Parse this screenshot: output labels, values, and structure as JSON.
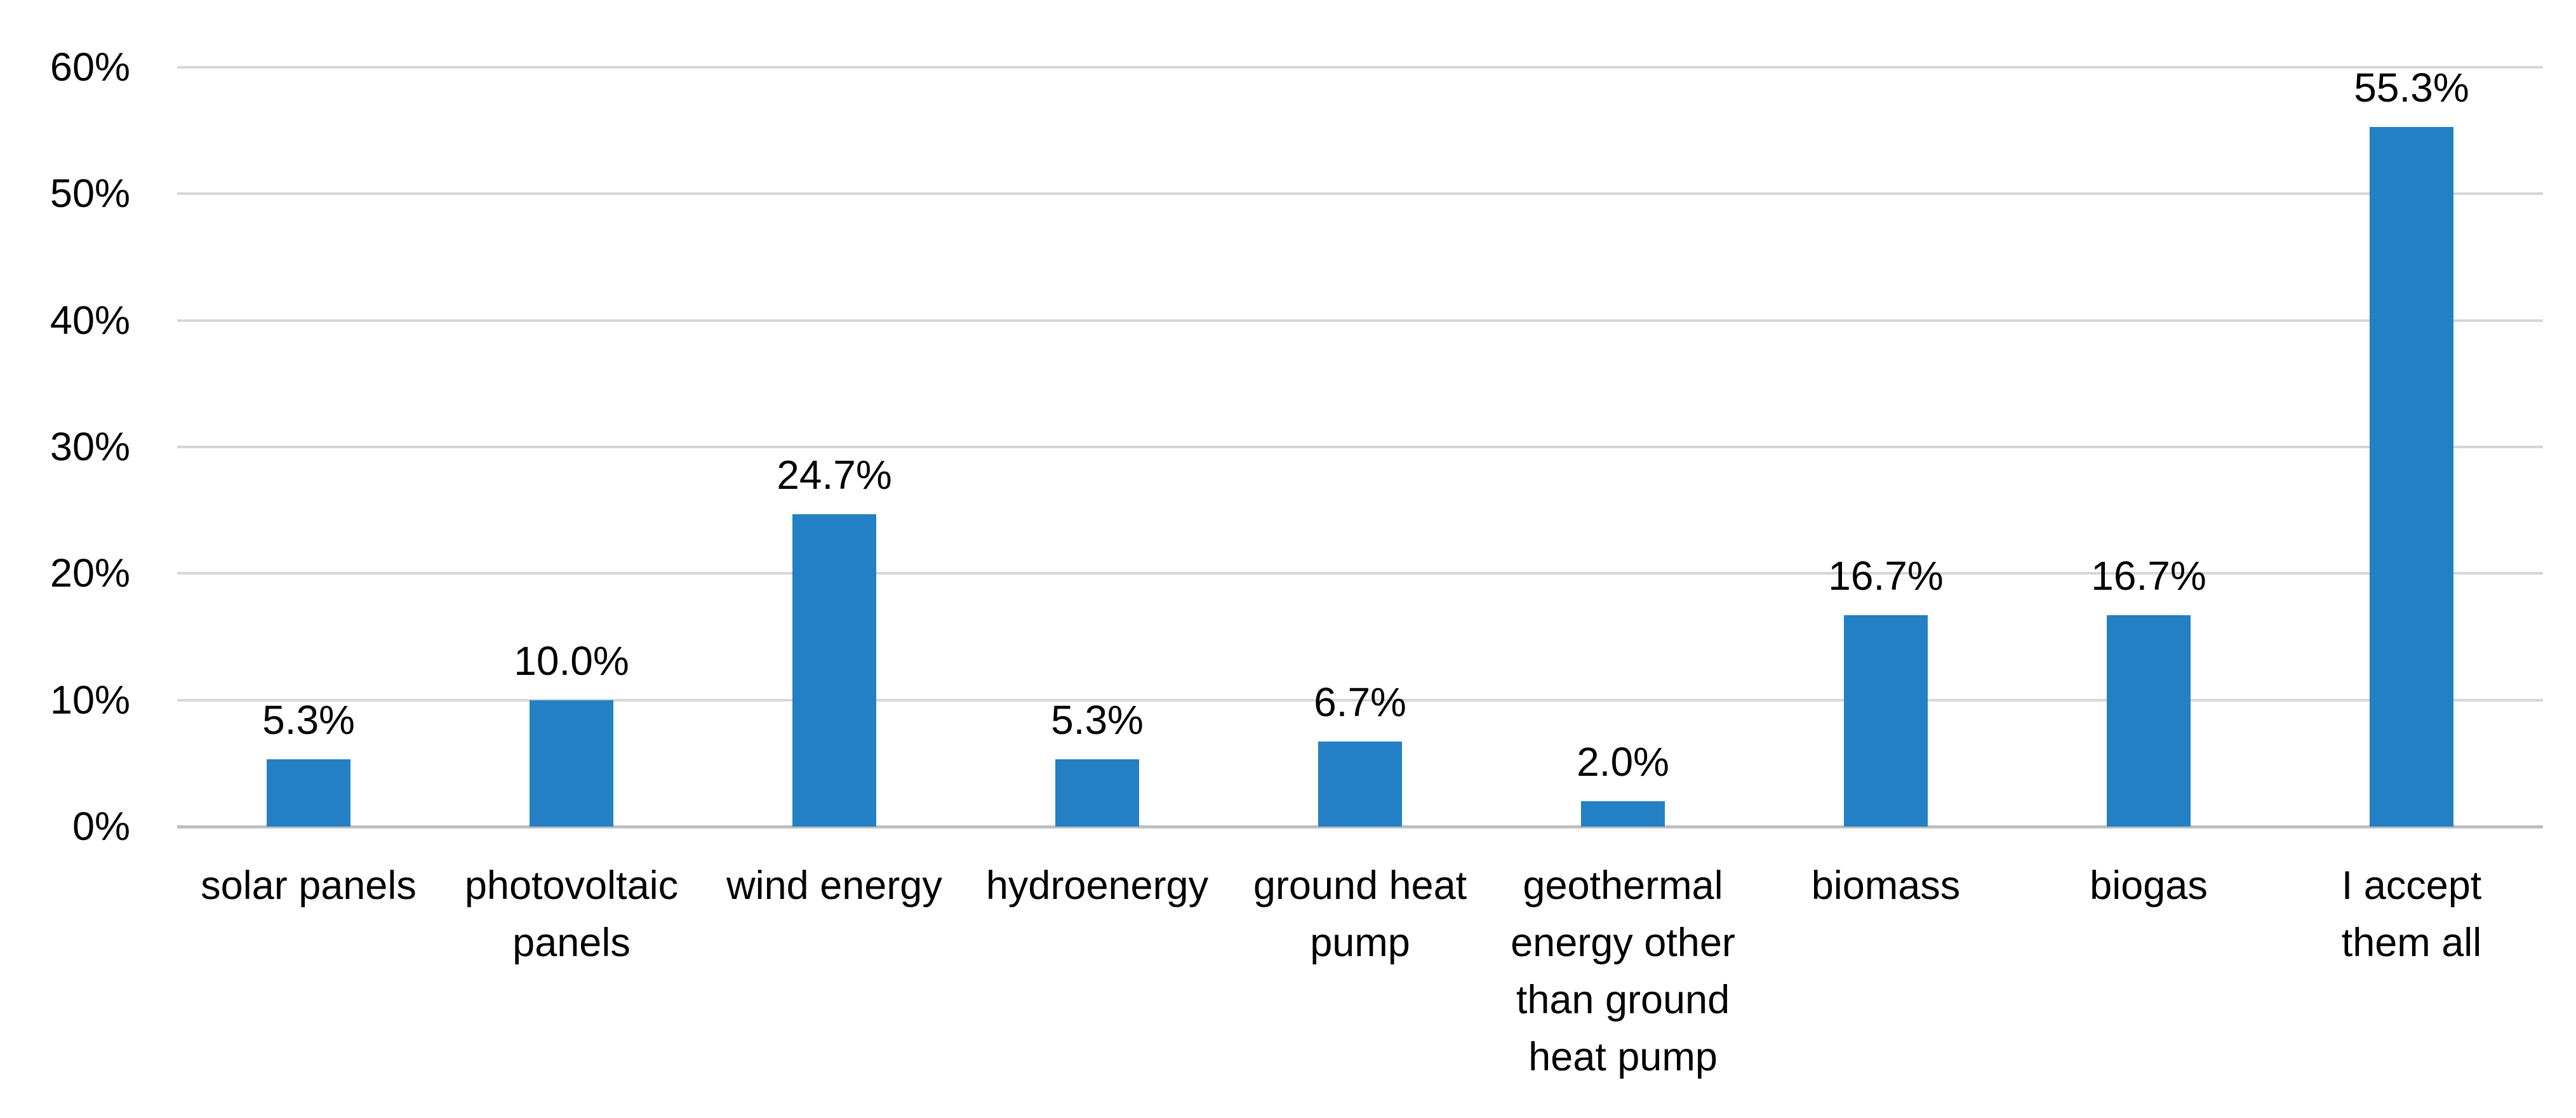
{
  "chart_data": {
    "type": "bar",
    "title": "",
    "xlabel": "",
    "ylabel": "",
    "categories": [
      "solar panels",
      "photovoltaic\npanels",
      "wind energy",
      "hydroenergy",
      "ground heat\npump",
      "geothermal\nenergy other\nthan ground\nheat pump",
      "biomass",
      "biogas",
      "I accept\nthem all"
    ],
    "values": [
      5.3,
      10.0,
      24.7,
      5.3,
      6.7,
      2.0,
      16.7,
      16.7,
      55.3
    ],
    "data_labels": [
      "5.3%",
      "10.0%",
      "24.7%",
      "5.3%",
      "6.7%",
      "2.0%",
      "16.7%",
      "16.7%",
      "55.3%"
    ],
    "ylim": [
      0,
      60
    ],
    "ytick_step": 10,
    "ytick_labels": [
      "0%",
      "10%",
      "20%",
      "30%",
      "40%",
      "50%",
      "60%"
    ],
    "grid": true,
    "legend": false,
    "colors": {
      "bar": "#2380C4",
      "gridline": "#d6d6d6",
      "axis_line": "#bfbfbf",
      "text": "#000000",
      "background": "#ffffff"
    }
  }
}
